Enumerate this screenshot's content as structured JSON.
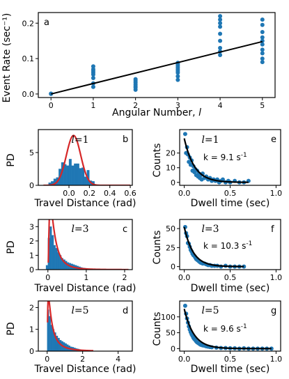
{
  "colors": {
    "points": "#1f77b4",
    "bars": "#1f77b4",
    "fit_black": "#000000",
    "fit_red": "#d62728"
  },
  "chart_data": [
    {
      "id": "a",
      "type": "scatter",
      "panel_label": "a",
      "xlabel": "Angular Number, l",
      "ylabel": "Event Rate (sec⁻¹)",
      "xlim": [
        -0.3,
        5.3
      ],
      "ylim": [
        -0.01,
        0.23
      ],
      "xticks": [
        0,
        1,
        2,
        3,
        4,
        5
      ],
      "yticks": [
        0.0,
        0.1,
        0.2
      ],
      "ytick_labels": [
        "0.0",
        "0.1",
        "0.2"
      ],
      "points": [
        [
          0,
          0.0
        ],
        [
          0,
          0.001
        ],
        [
          1,
          0.02
        ],
        [
          1,
          0.03
        ],
        [
          1,
          0.045
        ],
        [
          1,
          0.055
        ],
        [
          1,
          0.06
        ],
        [
          1,
          0.065
        ],
        [
          1,
          0.07
        ],
        [
          1,
          0.078
        ],
        [
          2,
          0.012
        ],
        [
          2,
          0.018
        ],
        [
          2,
          0.022
        ],
        [
          2,
          0.027
        ],
        [
          2,
          0.032
        ],
        [
          2,
          0.037
        ],
        [
          2,
          0.042
        ],
        [
          3,
          0.04
        ],
        [
          3,
          0.05
        ],
        [
          3,
          0.06
        ],
        [
          3,
          0.065
        ],
        [
          3,
          0.07
        ],
        [
          3,
          0.075
        ],
        [
          3,
          0.08
        ],
        [
          3,
          0.085
        ],
        [
          3,
          0.088
        ],
        [
          4,
          0.11
        ],
        [
          4,
          0.12
        ],
        [
          4,
          0.13
        ],
        [
          4,
          0.15
        ],
        [
          4,
          0.17
        ],
        [
          4,
          0.19
        ],
        [
          4,
          0.2
        ],
        [
          4,
          0.21
        ],
        [
          4,
          0.22
        ],
        [
          5,
          0.09
        ],
        [
          5,
          0.1
        ],
        [
          5,
          0.115
        ],
        [
          5,
          0.125
        ],
        [
          5,
          0.14
        ],
        [
          5,
          0.15
        ],
        [
          5,
          0.16
        ],
        [
          5,
          0.175
        ],
        [
          5,
          0.195
        ],
        [
          5,
          0.21
        ]
      ],
      "fit_line": {
        "x": [
          0,
          5
        ],
        "y": [
          0.0,
          0.148
        ]
      }
    },
    {
      "id": "b",
      "type": "bar",
      "panel_label": "b",
      "l_label": "l",
      "l_value": "=1",
      "xlabel": "Travel Distance (rad)",
      "ylabel": "PD",
      "xlim": [
        -0.3,
        0.62
      ],
      "ylim": [
        0,
        8.5
      ],
      "xticks": [
        0,
        0.2,
        0.4,
        0.6
      ],
      "xtick_labels": [
        "0.0",
        "0.2",
        "0.4",
        "0.6"
      ],
      "yticks": [
        0,
        5
      ],
      "ytick_labels": [
        "0",
        "5"
      ],
      "bin_width": 0.025,
      "bins_left": [
        -0.2,
        -0.175,
        -0.15,
        -0.125,
        -0.1,
        -0.075,
        -0.05,
        -0.025,
        0.0,
        0.025,
        0.05,
        0.075,
        0.1,
        0.125,
        0.15,
        0.175,
        0.2,
        0.225
      ],
      "values": [
        0.4,
        0.6,
        1.0,
        1.2,
        2.5,
        3.5,
        3.2,
        3.0,
        4.0,
        3.0,
        3.3,
        3.3,
        2.6,
        2.7,
        1.3,
        2.3,
        0.7,
        0.6
      ],
      "fit_curve": {
        "kind": "gaussian",
        "mean": 0.045,
        "sigma": 0.07,
        "peak": 7.6,
        "x_range": [
          -0.25,
          0.6
        ]
      }
    },
    {
      "id": "c",
      "type": "bar",
      "panel_label": "c",
      "l_label": "l",
      "l_value": "=3",
      "xlabel": "Travel Distance (rad)",
      "ylabel": "PD",
      "xlim": [
        -0.25,
        2.2
      ],
      "ylim": [
        0,
        3.5
      ],
      "xticks": [
        0,
        1,
        2
      ],
      "xtick_labels": [
        "0",
        "1",
        "2"
      ],
      "yticks": [
        0,
        1,
        2,
        3
      ],
      "ytick_labels": [
        "0",
        "1",
        "2",
        "3"
      ],
      "bin_width": 0.05,
      "bins_left": [
        -0.05,
        0.0,
        0.05,
        0.1,
        0.15,
        0.2,
        0.25,
        0.3,
        0.35,
        0.4,
        0.45,
        0.5,
        0.55,
        0.6,
        0.65,
        0.7,
        0.75,
        0.8,
        0.85,
        0.9,
        0.95,
        1.0,
        1.05,
        1.1
      ],
      "values": [
        0.3,
        2.2,
        3.0,
        2.4,
        1.7,
        1.5,
        1.2,
        1.0,
        0.8,
        0.7,
        0.6,
        0.5,
        0.45,
        0.4,
        0.35,
        0.3,
        0.25,
        0.2,
        0.15,
        0.12,
        0.1,
        0.08,
        0.05,
        0.03
      ],
      "fit_curve": {
        "kind": "lognormal",
        "mu": -1.9,
        "sigma": 0.9,
        "scale": 1.0,
        "x_range": [
          0.01,
          2.1
        ]
      }
    },
    {
      "id": "d",
      "type": "bar",
      "panel_label": "d",
      "l_label": "l",
      "l_value": "=5",
      "xlabel": "Travel Distance (rad)",
      "ylabel": "PD",
      "xlim": [
        -0.5,
        4.8
      ],
      "ylim": [
        0,
        2.3
      ],
      "xticks": [
        0,
        2,
        4
      ],
      "xtick_labels": [
        "0",
        "2",
        "4"
      ],
      "yticks": [
        0,
        1,
        2
      ],
      "ytick_labels": [
        "0",
        "1",
        "2"
      ],
      "bin_width": 0.1,
      "bins_left": [
        0.0,
        0.1,
        0.2,
        0.3,
        0.4,
        0.5,
        0.6,
        0.7,
        0.8,
        0.9,
        1.0,
        1.1,
        1.2,
        1.3,
        1.4,
        1.5,
        1.6,
        1.7,
        1.8,
        1.9,
        2.0,
        2.1,
        2.2
      ],
      "values": [
        1.9,
        1.6,
        1.2,
        1.0,
        0.85,
        0.7,
        0.6,
        0.5,
        0.45,
        0.4,
        0.35,
        0.3,
        0.25,
        0.2,
        0.18,
        0.15,
        0.12,
        0.1,
        0.08,
        0.06,
        0.05,
        0.04,
        0.03
      ],
      "fit_curve": {
        "kind": "lognormal",
        "mu": -1.3,
        "sigma": 1.15,
        "scale": 1.0,
        "x_range": [
          0.02,
          2.6
        ]
      }
    },
    {
      "id": "e",
      "type": "scatter",
      "panel_label": "e",
      "l_label": "l",
      "l_value": "=1",
      "rate_label": "k = 9.1 s",
      "rate_exp": "-1",
      "xlabel": "Dwell time (sec)",
      "ylabel": "Counts",
      "xlim": [
        -0.05,
        1.05
      ],
      "ylim": [
        -2,
        36
      ],
      "xticks": [
        0,
        0.5,
        1.0
      ],
      "xtick_labels": [
        "0.0",
        "0.5",
        "1.0"
      ],
      "yticks": [
        0,
        10,
        20
      ],
      "ytick_labels": [
        "0",
        "10",
        "20"
      ],
      "points": [
        [
          0.01,
          33
        ],
        [
          0.02,
          20
        ],
        [
          0.03,
          24
        ],
        [
          0.04,
          19
        ],
        [
          0.05,
          14
        ],
        [
          0.06,
          17
        ],
        [
          0.07,
          12
        ],
        [
          0.08,
          15
        ],
        [
          0.09,
          8
        ],
        [
          0.1,
          11
        ],
        [
          0.11,
          7
        ],
        [
          0.12,
          9
        ],
        [
          0.13,
          5
        ],
        [
          0.14,
          8
        ],
        [
          0.15,
          4
        ],
        [
          0.16,
          6
        ],
        [
          0.17,
          3
        ],
        [
          0.18,
          5
        ],
        [
          0.19,
          2
        ],
        [
          0.2,
          6
        ],
        [
          0.22,
          3
        ],
        [
          0.24,
          4
        ],
        [
          0.26,
          2
        ],
        [
          0.28,
          3
        ],
        [
          0.3,
          1
        ],
        [
          0.32,
          2
        ],
        [
          0.34,
          1
        ],
        [
          0.36,
          2
        ],
        [
          0.38,
          0
        ],
        [
          0.4,
          1
        ],
        [
          0.42,
          2
        ],
        [
          0.45,
          0
        ],
        [
          0.48,
          1
        ],
        [
          0.5,
          0
        ],
        [
          0.55,
          1
        ],
        [
          0.6,
          0
        ],
        [
          0.65,
          0
        ],
        [
          0.7,
          1
        ]
      ],
      "fit_curve": {
        "kind": "exp",
        "amplitude": 30,
        "k": 9.1,
        "x_range": [
          0.0,
          0.7
        ]
      }
    },
    {
      "id": "f",
      "type": "scatter",
      "panel_label": "f",
      "l_label": "l",
      "l_value": "=3",
      "rate_label": "k = 10.3 s",
      "rate_exp": "-1",
      "xlabel": "Dwell time (sec)",
      "ylabel": "Counts",
      "xlim": [
        -0.05,
        1.05
      ],
      "ylim": [
        -4,
        62
      ],
      "xticks": [
        0,
        0.5,
        1.0
      ],
      "xtick_labels": [
        "0.0",
        "0.5",
        "1.0"
      ],
      "yticks": [
        0,
        25,
        50
      ],
      "ytick_labels": [
        "0",
        "25",
        "50"
      ],
      "points": [
        [
          0.01,
          52
        ],
        [
          0.02,
          44
        ],
        [
          0.03,
          40
        ],
        [
          0.04,
          31
        ],
        [
          0.05,
          30
        ],
        [
          0.06,
          26
        ],
        [
          0.07,
          22
        ],
        [
          0.08,
          20
        ],
        [
          0.09,
          17
        ],
        [
          0.1,
          15
        ],
        [
          0.11,
          14
        ],
        [
          0.12,
          12
        ],
        [
          0.13,
          10
        ],
        [
          0.14,
          9
        ],
        [
          0.15,
          8
        ],
        [
          0.16,
          7
        ],
        [
          0.17,
          6
        ],
        [
          0.18,
          5
        ],
        [
          0.2,
          4
        ],
        [
          0.22,
          4
        ],
        [
          0.24,
          3
        ],
        [
          0.26,
          2
        ],
        [
          0.28,
          2
        ],
        [
          0.3,
          1
        ],
        [
          0.33,
          1
        ],
        [
          0.36,
          1
        ],
        [
          0.4,
          0
        ],
        [
          0.45,
          1
        ],
        [
          0.5,
          0
        ],
        [
          0.55,
          0
        ],
        [
          0.6,
          0
        ],
        [
          0.65,
          0
        ]
      ],
      "fit_curve": {
        "kind": "exp",
        "amplitude": 52,
        "k": 10.3,
        "x_range": [
          0.0,
          0.65
        ]
      }
    },
    {
      "id": "g",
      "type": "scatter",
      "panel_label": "g",
      "l_label": "l",
      "l_value": "=5",
      "rate_label": "k = 9.6 s",
      "rate_exp": "-1",
      "xlabel": "Dwell time (sec)",
      "ylabel": "Counts",
      "xlim": [
        -0.05,
        1.05
      ],
      "ylim": [
        -8,
        150
      ],
      "xticks": [
        0,
        0.5,
        1.0
      ],
      "xtick_labels": [
        "0.0",
        "0.5",
        "1.0"
      ],
      "yticks": [
        0,
        50,
        100
      ],
      "ytick_labels": [
        "0",
        "50",
        "100"
      ],
      "points": [
        [
          0.01,
          135
        ],
        [
          0.02,
          110
        ],
        [
          0.03,
          95
        ],
        [
          0.04,
          82
        ],
        [
          0.05,
          70
        ],
        [
          0.06,
          60
        ],
        [
          0.07,
          52
        ],
        [
          0.08,
          45
        ],
        [
          0.09,
          40
        ],
        [
          0.1,
          34
        ],
        [
          0.11,
          30
        ],
        [
          0.12,
          27
        ],
        [
          0.13,
          23
        ],
        [
          0.14,
          20
        ],
        [
          0.15,
          18
        ],
        [
          0.16,
          16
        ],
        [
          0.17,
          14
        ],
        [
          0.18,
          12
        ],
        [
          0.2,
          10
        ],
        [
          0.22,
          9
        ],
        [
          0.24,
          7
        ],
        [
          0.26,
          6
        ],
        [
          0.28,
          5
        ],
        [
          0.3,
          4
        ],
        [
          0.35,
          3
        ],
        [
          0.4,
          2
        ],
        [
          0.45,
          2
        ],
        [
          0.5,
          1
        ],
        [
          0.55,
          1
        ],
        [
          0.6,
          0
        ],
        [
          0.65,
          1
        ],
        [
          0.7,
          0
        ],
        [
          0.75,
          0
        ],
        [
          0.8,
          0
        ],
        [
          0.85,
          0
        ],
        [
          0.9,
          0
        ],
        [
          0.95,
          0
        ]
      ],
      "fit_curve": {
        "kind": "exp",
        "amplitude": 125,
        "k": 9.6,
        "x_range": [
          0.0,
          0.95
        ]
      }
    }
  ]
}
